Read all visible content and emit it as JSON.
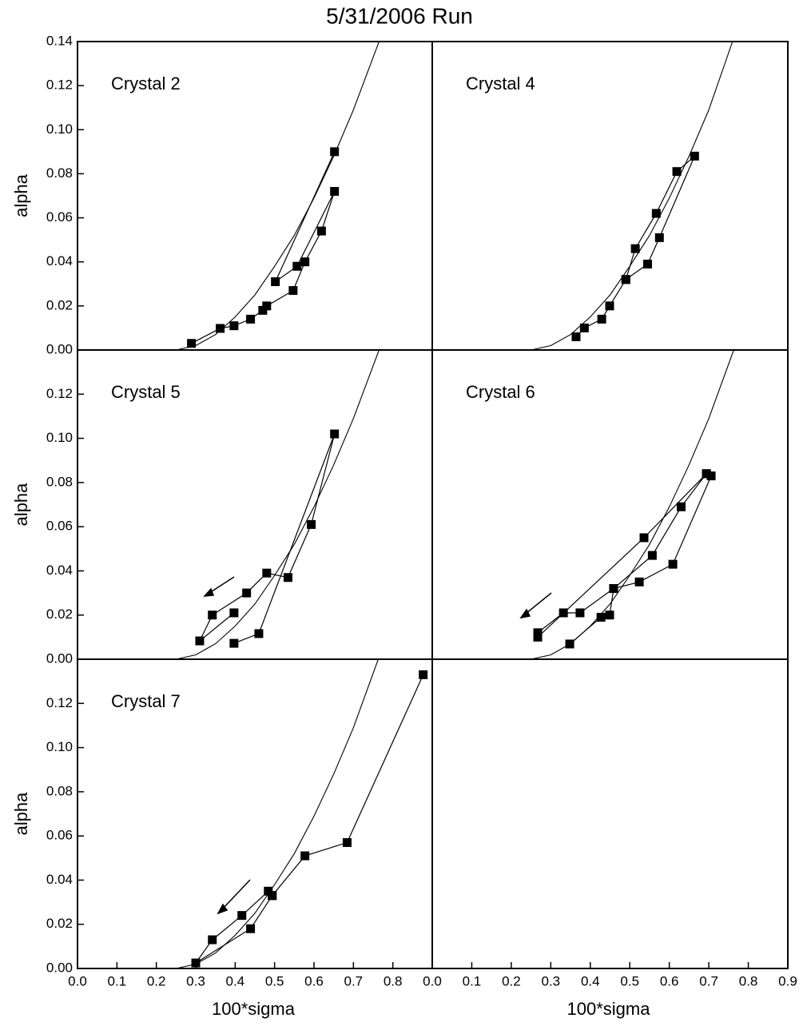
{
  "title": "5/31/2006 Run",
  "chart_data": [
    {
      "type": "line",
      "label": "Crystal 2",
      "xlim": [
        0,
        0.9
      ],
      "ylim": [
        0,
        0.14
      ],
      "ylabel": "alpha",
      "yticks": [
        {
          "value": 0,
          "label": "0.00"
        },
        0.02,
        0.04,
        0.06,
        0.08,
        {
          "value": 0.1,
          "label": "0.10"
        },
        0.12,
        0.14
      ],
      "series": [
        {
          "color": "#000000",
          "marker": true,
          "x": [
            0.289,
            0.362,
            0.397,
            0.439,
            0.47,
            0.48,
            0.547,
            0.577,
            0.619,
            0.652,
            0.557,
            0.502,
            0.652
          ],
          "values": [
            0.003,
            0.0098,
            0.011,
            0.014,
            0.018,
            0.02,
            0.027,
            0.04,
            0.054,
            0.072,
            0.038,
            0.031,
            0.09
          ]
        },
        {
          "color": "#000000",
          "marker": false,
          "x": [
            0.25,
            0.3,
            0.35,
            0.4,
            0.45,
            0.5,
            0.55,
            0.6,
            0.65,
            0.7,
            0.765
          ],
          "values": [
            0,
            0.002,
            0.007,
            0.015,
            0.025,
            0.038,
            0.052,
            0.069,
            0.088,
            0.109,
            0.14
          ]
        }
      ]
    },
    {
      "type": "line",
      "label": "Crystal 4",
      "xlim": [
        0,
        0.9
      ],
      "ylim": [
        0,
        0.14
      ],
      "series": [
        {
          "color": "#000000",
          "marker": true,
          "x": [
            0.364,
            0.385,
            0.429,
            0.449,
            0.49,
            0.514,
            0.567,
            0.619,
            0.664,
            0.575,
            0.545,
            0.49
          ],
          "values": [
            0.006,
            0.01,
            0.014,
            0.02,
            0.032,
            0.046,
            0.062,
            0.081,
            0.088,
            0.051,
            0.039,
            0.032
          ]
        },
        {
          "color": "#000000",
          "marker": false,
          "x": [
            0.25,
            0.3,
            0.35,
            0.4,
            0.45,
            0.5,
            0.55,
            0.6,
            0.65,
            0.7,
            0.76
          ],
          "values": [
            0,
            0.002,
            0.007,
            0.015,
            0.025,
            0.038,
            0.052,
            0.069,
            0.088,
            0.109,
            0.14
          ]
        }
      ]
    },
    {
      "type": "line",
      "label": "Crystal 5",
      "xlim": [
        0,
        0.9
      ],
      "ylim": [
        0,
        0.14
      ],
      "ylabel": "alpha",
      "yticks": [
        {
          "value": 0,
          "label": "0.00"
        },
        0.02,
        0.04,
        0.06,
        0.08,
        {
          "value": 0.1,
          "label": "0.10"
        },
        0.12
      ],
      "series": [
        {
          "color": "#000000",
          "marker": true,
          "x": [
            0.397,
            0.46,
            0.652,
            0.593,
            0.534,
            0.48,
            0.429,
            0.342,
            0.31,
            0.397
          ],
          "values": [
            0.0072,
            0.0116,
            0.102,
            0.061,
            0.037,
            0.039,
            0.03,
            0.02,
            0.0083,
            0.021
          ]
        },
        {
          "color": "#000000",
          "marker": false,
          "x": [
            0.25,
            0.3,
            0.35,
            0.4,
            0.45,
            0.5,
            0.55,
            0.6,
            0.65,
            0.7,
            0.765
          ],
          "values": [
            0,
            0.002,
            0.007,
            0.015,
            0.025,
            0.038,
            0.052,
            0.069,
            0.088,
            0.109,
            0.14
          ]
        }
      ]
    },
    {
      "type": "line",
      "label": "Crystal 6",
      "xlim": [
        0,
        0.9
      ],
      "ylim": [
        0,
        0.14
      ],
      "series": [
        {
          "color": "#000000",
          "marker": true,
          "x": [
            0.348,
            0.427,
            0.449,
            0.459,
            0.557,
            0.63,
            0.694,
            0.706,
            0.609,
            0.524,
            0.459,
            0.374,
            0.332,
            0.267,
            0.267,
            0.536,
            0.694
          ],
          "values": [
            0.0069,
            0.019,
            0.02,
            0.032,
            0.047,
            0.069,
            0.084,
            0.083,
            0.043,
            0.035,
            0.032,
            0.021,
            0.021,
            0.012,
            0.01,
            0.055,
            0.084
          ]
        },
        {
          "color": "#000000",
          "marker": false,
          "x": [
            0.25,
            0.3,
            0.35,
            0.4,
            0.45,
            0.5,
            0.55,
            0.6,
            0.65,
            0.7,
            0.763
          ],
          "values": [
            0,
            0.002,
            0.007,
            0.015,
            0.025,
            0.038,
            0.052,
            0.069,
            0.088,
            0.109,
            0.14
          ]
        }
      ]
    },
    {
      "type": "line",
      "label": "Crystal 7",
      "xlim": [
        0,
        0.9
      ],
      "ylim": [
        0,
        0.14
      ],
      "ylabel": "alpha",
      "xlabel": "100*sigma",
      "yticks": [
        {
          "value": 0,
          "label": "0.00"
        },
        0.02,
        0.04,
        0.06,
        0.08,
        {
          "value": 0.1,
          "label": "0.10"
        },
        0.12
      ],
      "xticks": [
        {
          "value": 0,
          "label": "0.0"
        },
        0.1,
        0.2,
        0.3,
        0.4,
        0.5,
        0.6,
        0.7,
        0.8
      ],
      "series": [
        {
          "color": "#000000",
          "marker": true,
          "x": [
            0.877,
            0.684,
            0.577,
            0.494,
            0.484,
            0.417,
            0.342,
            0.3,
            0.439,
            0.494
          ],
          "values": [
            0.133,
            0.057,
            0.051,
            0.033,
            0.035,
            0.024,
            0.013,
            0.0025,
            0.018,
            0.033
          ]
        },
        {
          "color": "#000000",
          "marker": false,
          "x": [
            0.25,
            0.3,
            0.35,
            0.4,
            0.45,
            0.5,
            0.55,
            0.6,
            0.65,
            0.7,
            0.763
          ],
          "values": [
            0,
            0.002,
            0.007,
            0.015,
            0.025,
            0.038,
            0.052,
            0.069,
            0.088,
            0.109,
            0.14
          ]
        }
      ]
    },
    {
      "type": "line",
      "xlim": [
        0,
        0.9
      ],
      "ylim": [
        0,
        0.14
      ],
      "xlabel": "100*sigma",
      "xticks": [
        {
          "value": 0,
          "label": "0.0"
        },
        0.1,
        0.2,
        0.3,
        0.4,
        0.5,
        0.6,
        0.7,
        0.8,
        0.9
      ],
      "series": []
    }
  ]
}
